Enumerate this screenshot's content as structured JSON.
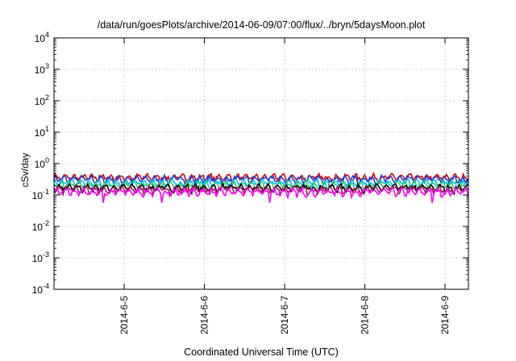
{
  "chart_data": {
    "type": "line",
    "title": "/data/run/goesPlots/archive/2014-06-09/07:00/flux/../bryn/5daysMoon.plot",
    "xlabel": "Coordinated Universal Time (UTC)",
    "ylabel": "cSv/day",
    "yscale": "log",
    "ylim": [
      0.0001,
      10000
    ],
    "xlim": [
      "2014-06-04 03:00",
      "2014-06-09 07:00"
    ],
    "y_ticks": [
      {
        "value": 0.0001,
        "base": "10",
        "exp": "-4"
      },
      {
        "value": 0.001,
        "base": "10",
        "exp": "-3"
      },
      {
        "value": 0.01,
        "base": "10",
        "exp": "-2"
      },
      {
        "value": 0.1,
        "base": "10",
        "exp": "-1"
      },
      {
        "value": 1,
        "base": "10",
        "exp": "0"
      },
      {
        "value": 10,
        "base": "10",
        "exp": "1"
      },
      {
        "value": 100,
        "base": "10",
        "exp": "2"
      },
      {
        "value": 1000,
        "base": "10",
        "exp": "3"
      },
      {
        "value": 10000,
        "base": "10",
        "exp": "4"
      }
    ],
    "x_ticks": [
      {
        "value": "2014-06-05 00:00",
        "label": "2014-6-5"
      },
      {
        "value": "2014-06-06 00:00",
        "label": "2014-6-6"
      },
      {
        "value": "2014-06-07 00:00",
        "label": "2014-6-7"
      },
      {
        "value": "2014-06-08 00:00",
        "label": "2014-6-8"
      },
      {
        "value": "2014-06-09 00:00",
        "label": "2014-6-9"
      }
    ],
    "grid": true,
    "series": [
      {
        "color": "#d40000",
        "level": 0.36
      },
      {
        "color": "#1f3fd6",
        "level": 0.32
      },
      {
        "color": "#00bfff",
        "level": 0.24
      },
      {
        "color": "#2ecc71",
        "level": 0.21
      },
      {
        "color": "#000000",
        "level": 0.17
      },
      {
        "color": "#9a1f50",
        "level": 0.15
      },
      {
        "color": "#ff00ff",
        "level": 0.125
      }
    ]
  }
}
